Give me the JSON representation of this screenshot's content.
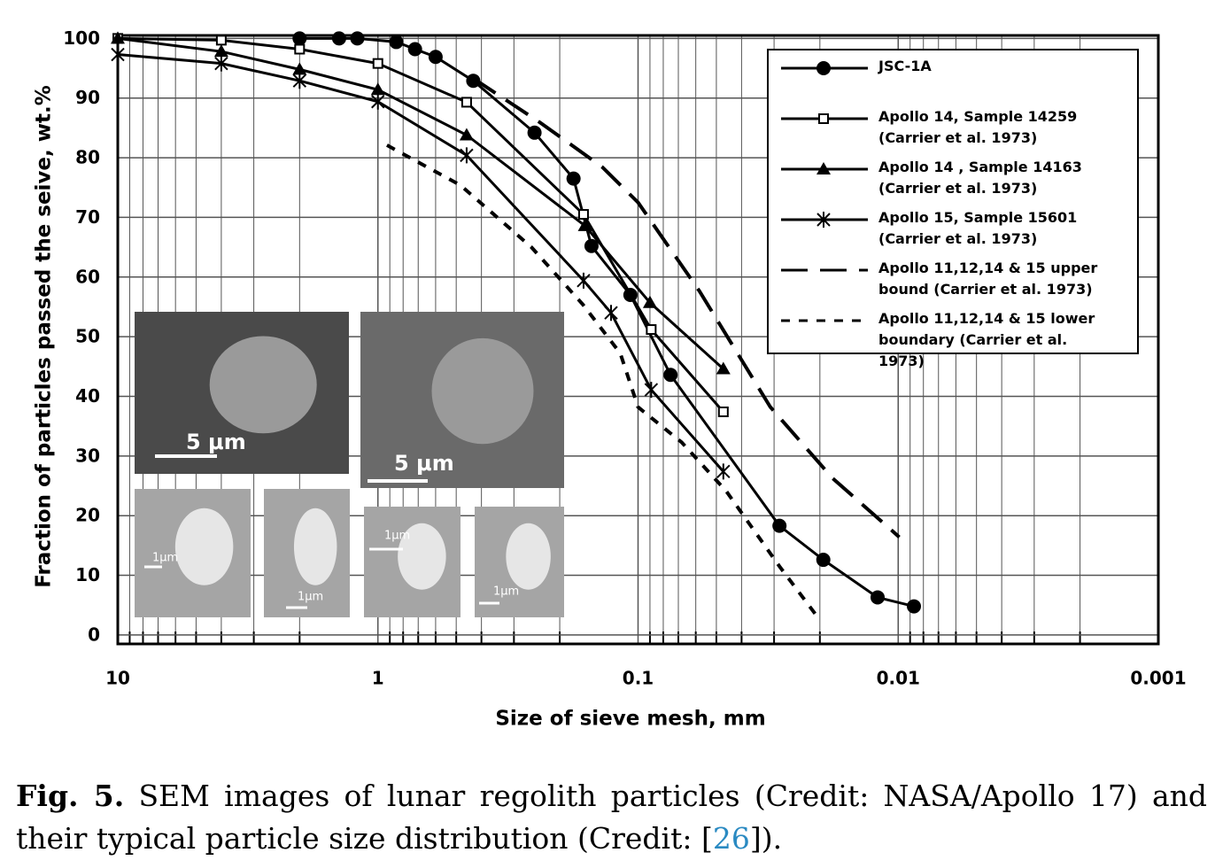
{
  "chart_data": {
    "type": "line",
    "x_label": "Size of sieve mesh, mm",
    "y_label": "Fraction of particles passed the seive, wt.%",
    "log_x": true,
    "grid": true,
    "legend": "upper right",
    "xlim": [
      10,
      0.001
    ],
    "xticks": [
      10,
      1,
      0.1,
      0.01,
      0.001
    ],
    "ylim": [
      -1.5,
      100.5
    ],
    "yticks": [
      0,
      10,
      20,
      30,
      40,
      50,
      60,
      70,
      80,
      90,
      100
    ],
    "series": [
      {
        "name": "JSC-1A",
        "color": "#000000",
        "marker": "circle",
        "line_style": "solid",
        "x": [
          2.0,
          1.41,
          1.2,
          0.85,
          0.72,
          0.6,
          0.43,
          0.25,
          0.177,
          0.151,
          0.107,
          0.075,
          0.0286,
          0.0194,
          0.012,
          0.0087
        ],
        "values": [
          100,
          100,
          100,
          99.4,
          98.2,
          96.9,
          92.9,
          84.2,
          76.5,
          65.2,
          57.0,
          43.6,
          18.3,
          12.6,
          6.3,
          4.8
        ]
      },
      {
        "name": "Apollo 14, Sample 14259 (Carrier et al. 1973)",
        "color": "#000000",
        "marker": "square",
        "line_style": "solid",
        "x": [
          10,
          4,
          2,
          1,
          0.456,
          0.162,
          0.089,
          0.047
        ],
        "values": [
          100,
          99.7,
          98.2,
          95.8,
          89.3,
          70.5,
          51.2,
          37.4
        ]
      },
      {
        "name": "Apollo 14 , Sample 14163 (Carrier et al. 1973)",
        "color": "#000000",
        "marker": "triangle",
        "line_style": "solid",
        "x": [
          10,
          4,
          2,
          1,
          0.456,
          0.16,
          0.09,
          0.047
        ],
        "values": [
          100,
          97.8,
          94.8,
          91.4,
          83.8,
          68.6,
          55.7,
          44.6
        ]
      },
      {
        "name": "Apollo 15, Sample 15601 (Carrier et al. 1973)",
        "color": "#000000",
        "marker": "star",
        "line_style": "solid",
        "x": [
          10,
          4,
          2,
          1,
          0.456,
          0.162,
          0.127,
          0.089,
          0.047
        ],
        "values": [
          97.3,
          95.8,
          92.9,
          89.4,
          80.4,
          59.4,
          54.0,
          41.1,
          27.4
        ]
      },
      {
        "name": "Apollo 11,12,14 & 15 upper bound (Carrier et al. 1973)",
        "color": "#000000",
        "line_style": "long-dashed",
        "x": [
          0.43,
          0.238,
          0.137,
          0.1,
          0.058,
          0.031,
          0.0179,
          0.0099
        ],
        "values": [
          93.3,
          85.9,
          78.4,
          72.5,
          57.6,
          38.2,
          26.3,
          16.4
        ]
      },
      {
        "name": "Apollo 11,12,14 & 15 lower boundary (Carrier et al. 1973)",
        "color": "#000000",
        "line_style": "short-dashed",
        "x": [
          0.923,
          0.482,
          0.257,
          0.163,
          0.117,
          0.1,
          0.068,
          0.0458,
          0.0286,
          0.02
        ],
        "values": [
          82.1,
          75.4,
          65,
          55.4,
          47.2,
          38.2,
          32.3,
          24.1,
          11.5,
          2.5
        ]
      }
    ],
    "inset_labels": [
      "5 μm",
      "5 μm",
      "1μm",
      "1μm",
      "1μm",
      "1μm"
    ]
  },
  "caption": {
    "label": "Fig. 5.",
    "text": "SEM images of lunar regolith particles (Credit: NASA/Apollo 17) and their typical particle size distribution (Credit: [",
    "ref": "26",
    "text_end": "])."
  }
}
